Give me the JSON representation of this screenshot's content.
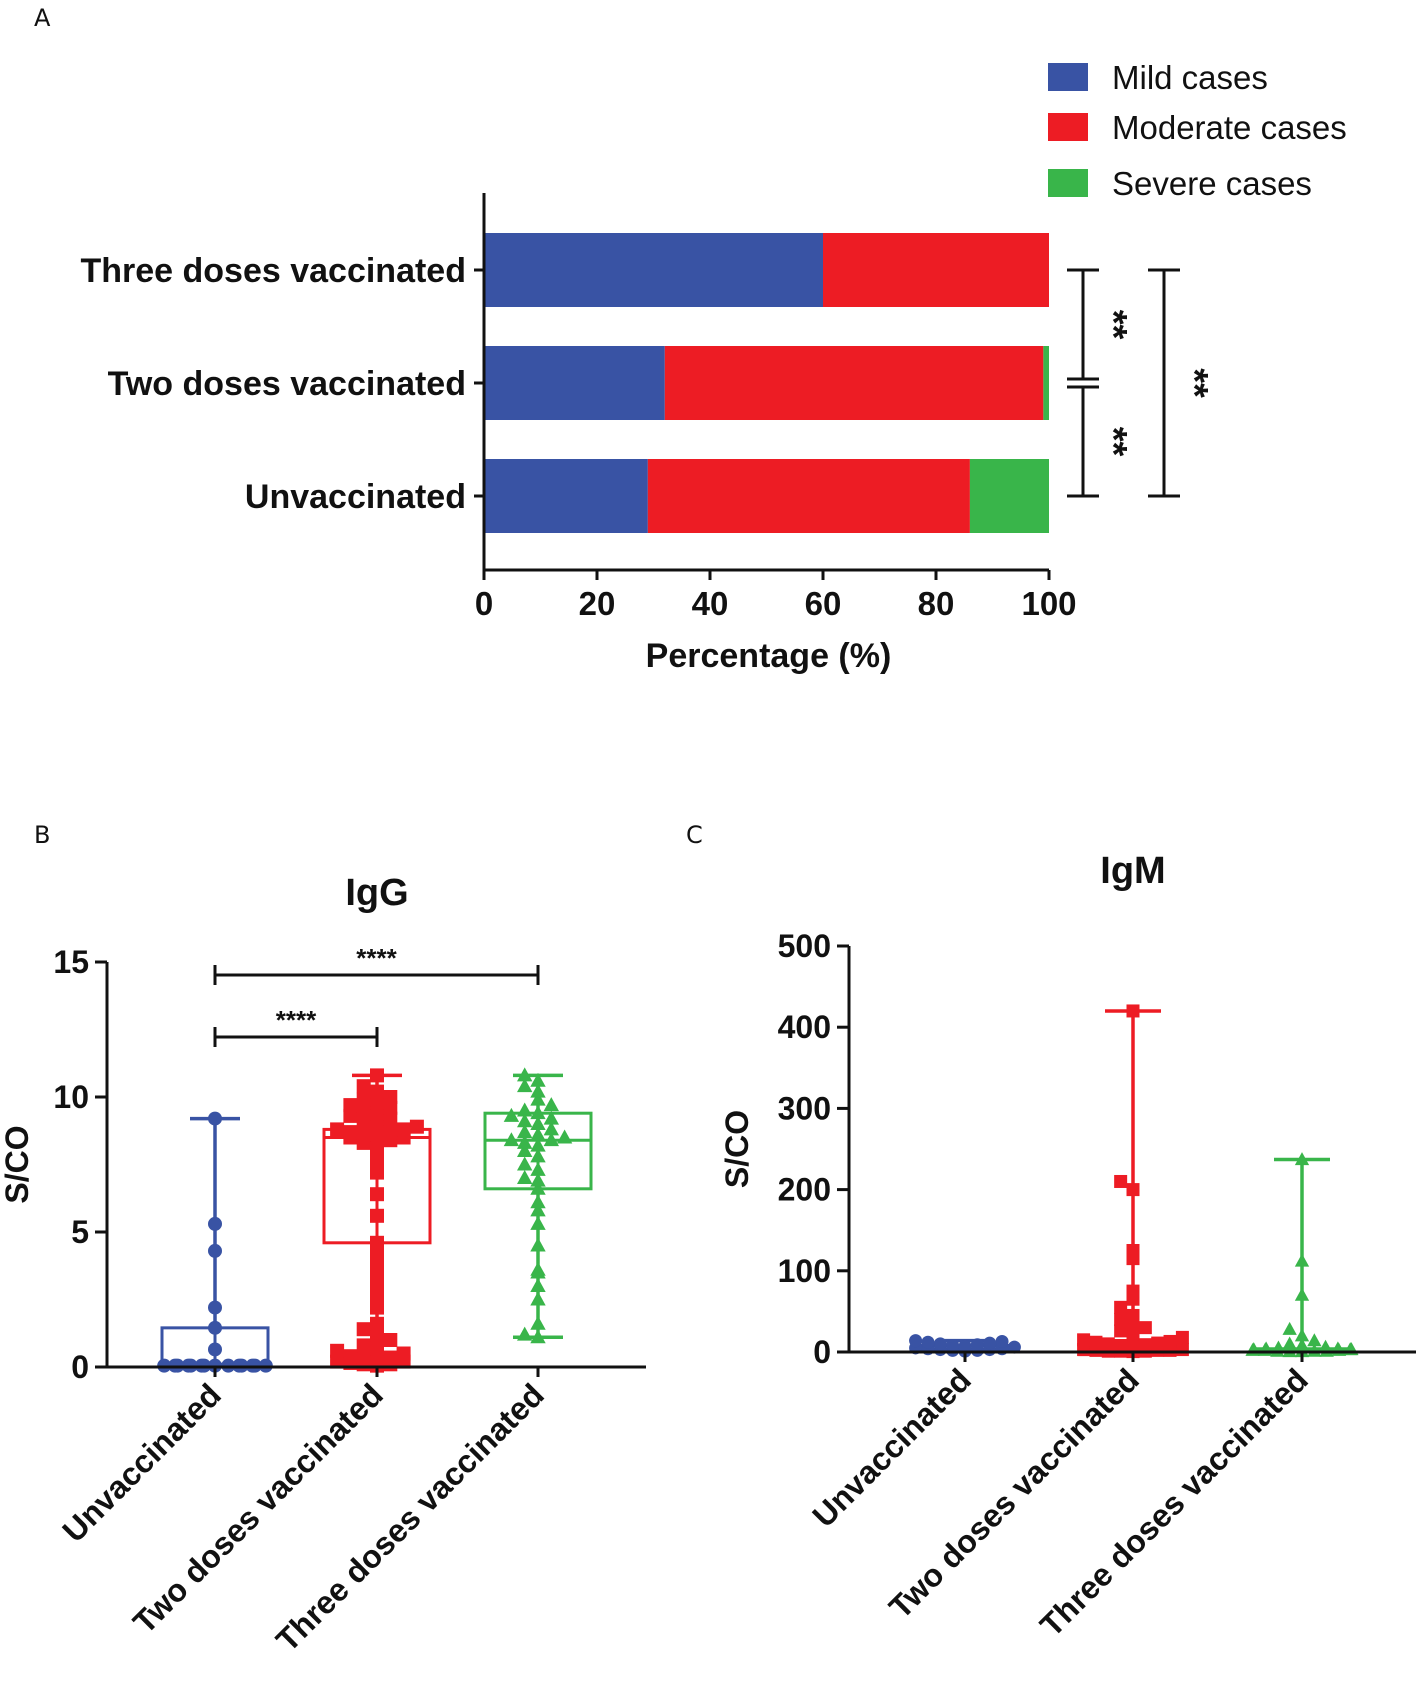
{
  "chart_data": [
    {
      "panel": "A",
      "type": "bar",
      "orientation": "horizontal",
      "stacked": true,
      "xlabel": "Percentage (%)",
      "xlim": [
        0,
        100
      ],
      "xticks": [
        "0",
        "20",
        "40",
        "60",
        "80",
        "100"
      ],
      "categories": [
        "Three doses vaccinated",
        "Two doses vaccinated",
        "Unvaccinated"
      ],
      "series": [
        {
          "name": "Mild cases",
          "color": "#3953a4",
          "values": [
            60,
            32,
            29
          ]
        },
        {
          "name": "Moderate cases",
          "color": "#ed1c24",
          "values": [
            40,
            67,
            57
          ]
        },
        {
          "name": "Severe cases",
          "color": "#39b54a",
          "values": [
            0,
            1,
            14
          ]
        }
      ],
      "significance": [
        {
          "between": [
            "Three doses vaccinated",
            "Two doses vaccinated"
          ],
          "label": "**"
        },
        {
          "between": [
            "Two doses vaccinated",
            "Unvaccinated"
          ],
          "label": "**"
        },
        {
          "between": [
            "Three doses vaccinated",
            "Unvaccinated"
          ],
          "label": "**"
        }
      ]
    },
    {
      "panel": "B",
      "type": "scatter",
      "title": "IgG",
      "ylabel": "S/CO",
      "ylim": [
        0,
        15
      ],
      "yticks": [
        "0",
        "5",
        "10",
        "15"
      ],
      "categories": [
        "Unvaccinated",
        "Two doses vaccinated",
        "Three doses vaccinated"
      ],
      "groups": [
        {
          "name": "Unvaccinated",
          "color": "#3953a4",
          "marker": "circle",
          "box": {
            "min": 0.05,
            "q1": 0.05,
            "median": 0.1,
            "q3": 1.45,
            "max": 9.2
          },
          "points": [
            0.05,
            0.05,
            0.05,
            0.05,
            0.05,
            0.05,
            0.05,
            0.05,
            0.05,
            0.05,
            0.05,
            0.05,
            0.05,
            0.05,
            0.65,
            1.45,
            2.2,
            4.3,
            5.3,
            9.2
          ]
        },
        {
          "name": "Two doses vaccinated",
          "color": "#ed1c24",
          "marker": "square",
          "box": {
            "min": 0.05,
            "q1": 4.6,
            "median": 8.5,
            "q3": 8.8,
            "max": 10.8
          },
          "points": [
            0.05,
            0.1,
            0.1,
            0.15,
            0.2,
            0.2,
            0.25,
            0.3,
            0.35,
            0.4,
            0.5,
            0.6,
            0.7,
            0.8,
            1.0,
            1.2,
            1.4,
            1.6,
            2.2,
            2.6,
            3.1,
            3.5,
            3.9,
            4.2,
            4.6,
            5.6,
            6.4,
            7.2,
            7.6,
            8.0,
            8.2,
            8.3,
            8.4,
            8.5,
            8.5,
            8.6,
            8.6,
            8.7,
            8.7,
            8.8,
            8.8,
            8.9,
            9.0,
            9.1,
            9.2,
            9.3,
            9.4,
            9.5,
            9.6,
            9.7,
            9.8,
            9.9,
            10.0,
            10.2,
            10.4,
            10.8
          ]
        },
        {
          "name": "Three doses vaccinated",
          "color": "#39b54a",
          "marker": "triangle",
          "box": {
            "min": 1.1,
            "q1": 6.6,
            "median": 8.4,
            "q3": 9.4,
            "max": 10.8
          },
          "points": [
            1.1,
            1.2,
            1.6,
            2.5,
            3.0,
            3.5,
            3.6,
            4.5,
            5.3,
            5.8,
            6.1,
            6.6,
            6.9,
            7.0,
            7.3,
            7.5,
            7.8,
            8.0,
            8.2,
            8.3,
            8.4,
            8.4,
            8.5,
            8.6,
            8.7,
            8.8,
            9.0,
            9.1,
            9.2,
            9.3,
            9.4,
            9.5,
            9.7,
            9.9,
            10.2,
            10.4,
            10.6,
            10.8
          ]
        }
      ],
      "significance": [
        {
          "between": [
            "Unvaccinated",
            "Two doses vaccinated"
          ],
          "label": "****"
        },
        {
          "between": [
            "Unvaccinated",
            "Three doses vaccinated"
          ],
          "label": "****"
        }
      ]
    },
    {
      "panel": "C",
      "type": "scatter",
      "title": "IgM",
      "ylabel": "S/CO",
      "ylim": [
        0,
        500
      ],
      "yticks": [
        "0",
        "100",
        "200",
        "300",
        "400",
        "500"
      ],
      "categories": [
        "Unvaccinated",
        "Two doses vaccinated",
        "Three doses vaccinated"
      ],
      "groups": [
        {
          "name": "Unvaccinated",
          "color": "#3953a4",
          "marker": "circle",
          "box": {
            "min": 1,
            "q1": 2,
            "median": 4,
            "q3": 8,
            "max": 14
          },
          "points": [
            1,
            2,
            2,
            3,
            3,
            4,
            4,
            5,
            6,
            7,
            8,
            9,
            10,
            11,
            12,
            13,
            14
          ]
        },
        {
          "name": "Two doses vaccinated",
          "color": "#ed1c24",
          "marker": "square",
          "box": {
            "min": 0.5,
            "q1": 1,
            "median": 3,
            "q3": 8,
            "max": 420
          },
          "points": [
            0.5,
            1,
            1,
            1,
            2,
            2,
            2,
            3,
            3,
            3,
            4,
            4,
            5,
            5,
            6,
            6,
            7,
            8,
            9,
            10,
            11,
            12,
            13,
            15,
            18,
            22,
            26,
            30,
            35,
            40,
            45,
            55,
            65,
            75,
            115,
            125,
            200,
            210,
            420
          ]
        },
        {
          "name": "Three doses vaccinated",
          "color": "#39b54a",
          "marker": "triangle",
          "box": {
            "min": 0.5,
            "q1": 1,
            "median": 2,
            "q3": 4,
            "max": 237
          },
          "points": [
            0.5,
            0.5,
            1,
            1,
            1,
            2,
            2,
            2,
            3,
            3,
            3,
            4,
            4,
            5,
            6,
            8,
            10,
            14,
            20,
            28,
            70,
            112,
            237
          ]
        }
      ]
    }
  ],
  "panel_labels": {
    "a": "A",
    "b": "B",
    "c": "C"
  }
}
